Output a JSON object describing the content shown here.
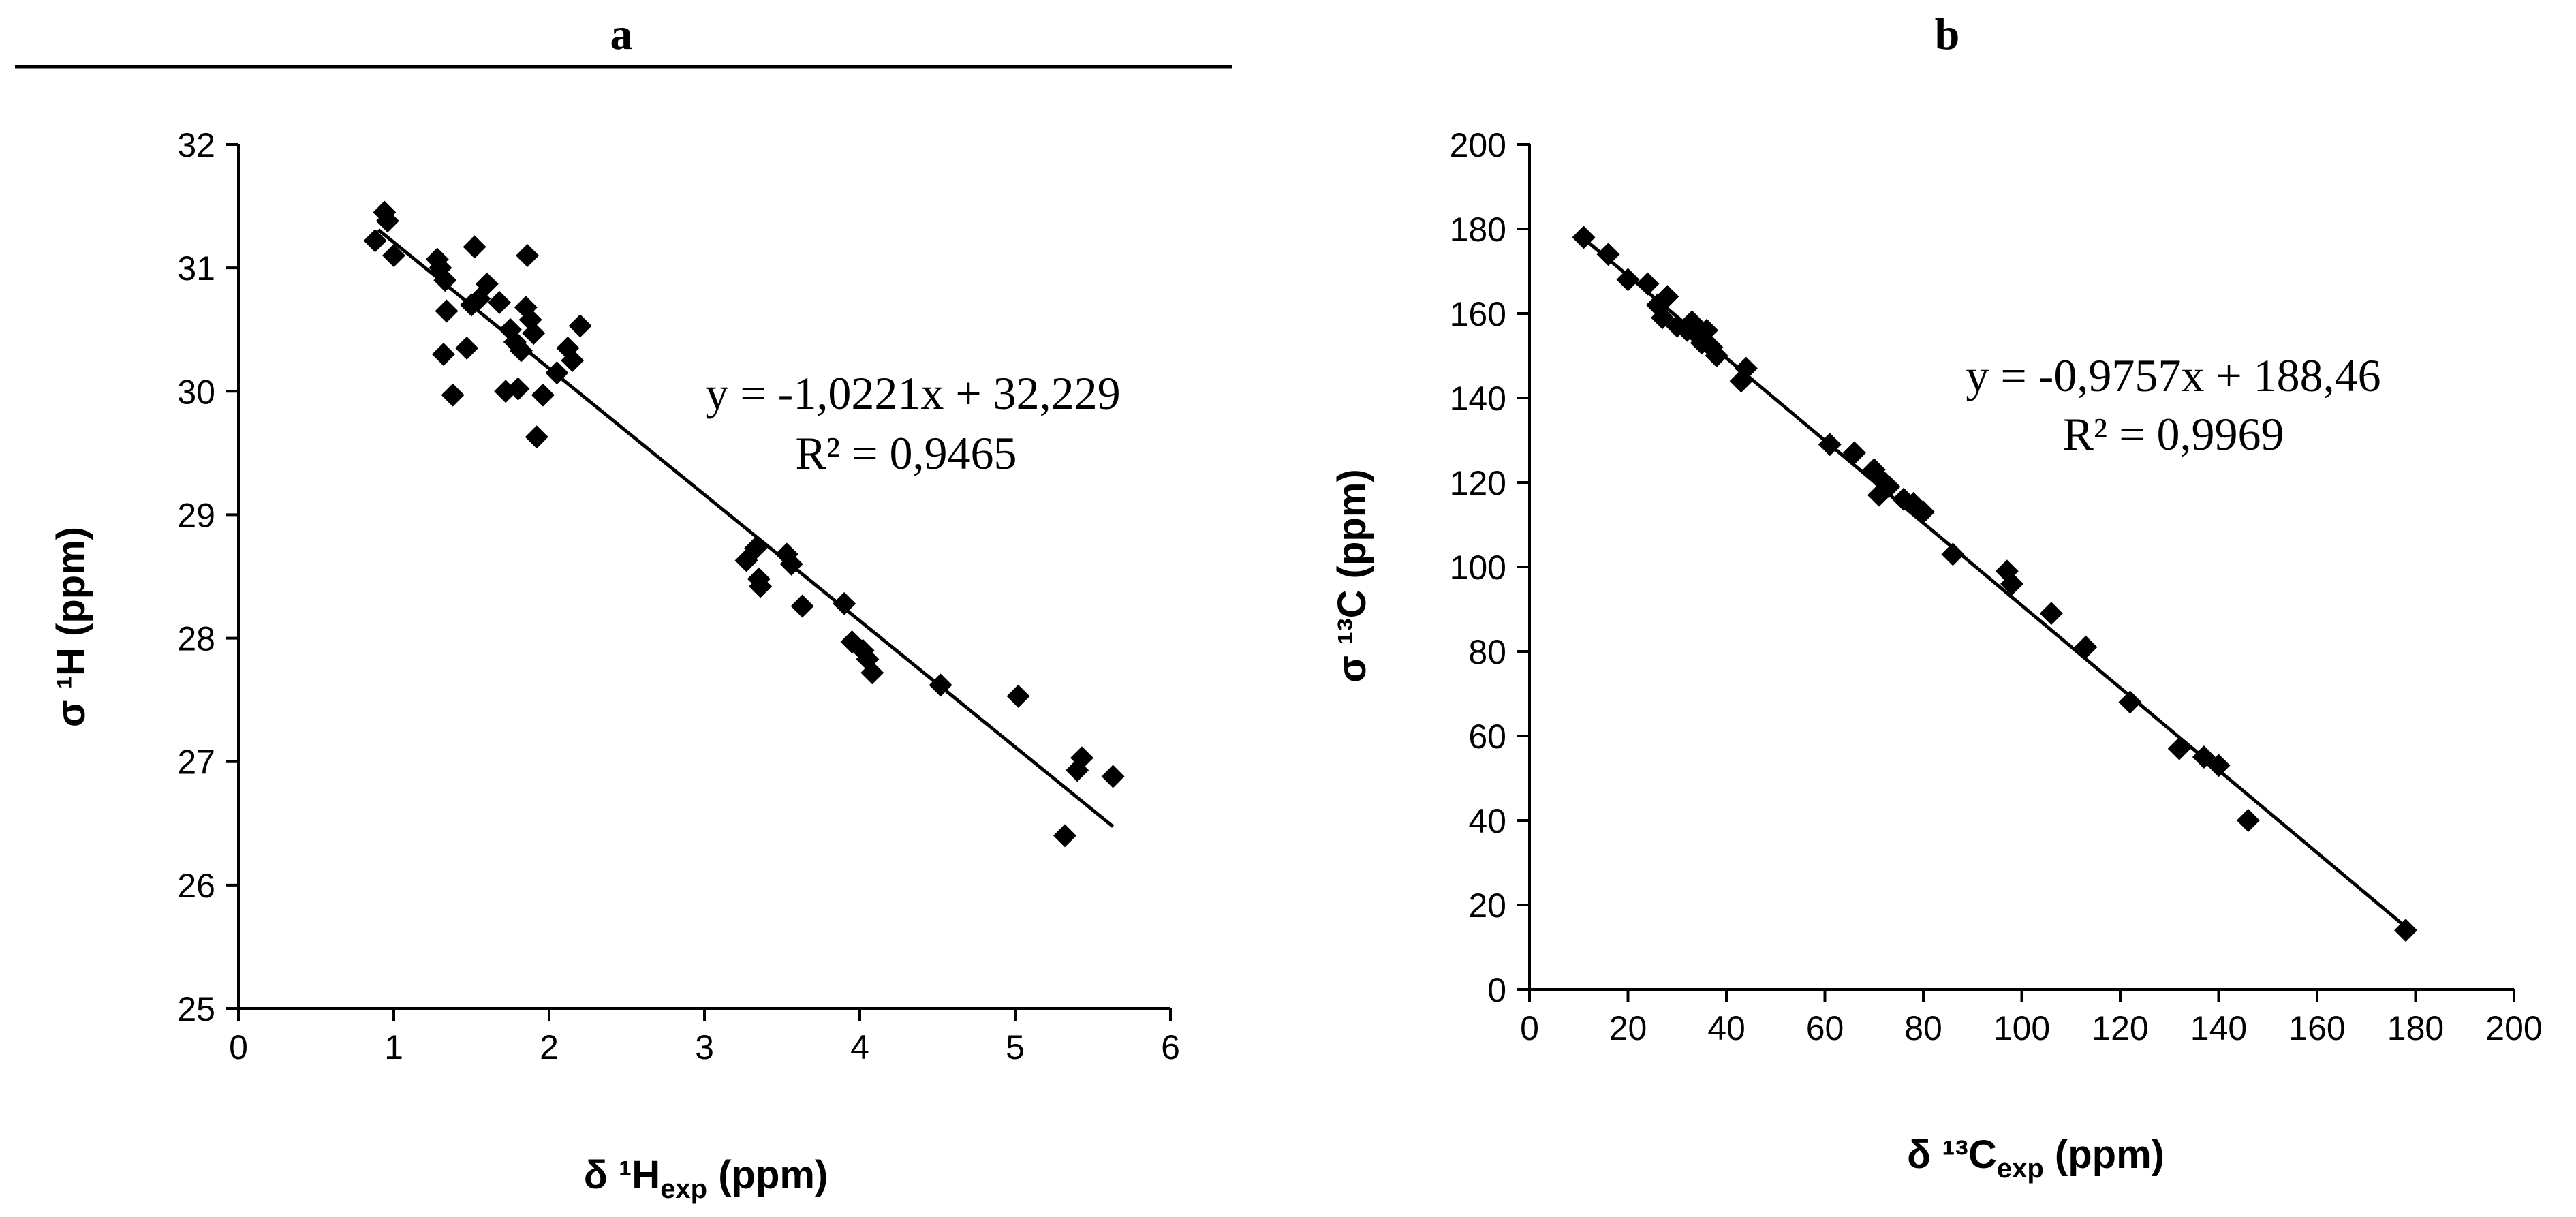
{
  "chart_data": [
    {
      "panel": "a",
      "type": "scatter",
      "xlabel": "δ ¹H",
      "xlabel_sub": "exp",
      "xlabel_unit": " (ppm)",
      "ylabel": "σ ¹H (ppm)",
      "xlim": [
        0,
        6
      ],
      "ylim": [
        25,
        32
      ],
      "xticks": [
        0,
        1,
        2,
        3,
        4,
        5,
        6
      ],
      "yticks": [
        25,
        26,
        27,
        28,
        29,
        30,
        31,
        32
      ],
      "grid": false,
      "equation": "y = -1,0221x + 32,229",
      "r2": "R² = 0,9465",
      "trendline": {
        "slope": -1.0221,
        "intercept": 32.229,
        "x_range": [
          0.9,
          5.63
        ]
      },
      "points": [
        [
          0.88,
          31.22
        ],
        [
          0.94,
          31.45
        ],
        [
          0.96,
          31.38
        ],
        [
          1.0,
          31.1
        ],
        [
          1.28,
          31.07
        ],
        [
          1.3,
          31.0
        ],
        [
          1.33,
          30.9
        ],
        [
          1.34,
          30.65
        ],
        [
          1.32,
          30.3
        ],
        [
          1.38,
          29.97
        ],
        [
          1.47,
          30.35
        ],
        [
          1.5,
          30.7
        ],
        [
          1.52,
          31.17
        ],
        [
          1.55,
          30.75
        ],
        [
          1.6,
          30.87
        ],
        [
          1.68,
          30.72
        ],
        [
          1.72,
          30.0
        ],
        [
          1.75,
          30.5
        ],
        [
          1.78,
          30.4
        ],
        [
          1.8,
          30.02
        ],
        [
          1.82,
          30.33
        ],
        [
          1.85,
          30.68
        ],
        [
          1.86,
          31.1
        ],
        [
          1.88,
          30.58
        ],
        [
          1.9,
          30.47
        ],
        [
          1.92,
          29.63
        ],
        [
          1.96,
          29.97
        ],
        [
          2.05,
          30.15
        ],
        [
          2.12,
          30.35
        ],
        [
          2.15,
          30.25
        ],
        [
          2.2,
          30.53
        ],
        [
          3.27,
          28.63
        ],
        [
          3.33,
          28.73
        ],
        [
          3.35,
          28.48
        ],
        [
          3.36,
          28.42
        ],
        [
          3.53,
          28.68
        ],
        [
          3.56,
          28.6
        ],
        [
          3.63,
          28.26
        ],
        [
          3.9,
          28.28
        ],
        [
          3.95,
          27.97
        ],
        [
          4.02,
          27.9
        ],
        [
          4.05,
          27.83
        ],
        [
          4.08,
          27.72
        ],
        [
          4.52,
          27.62
        ],
        [
          5.02,
          27.53
        ],
        [
          5.32,
          26.4
        ],
        [
          5.4,
          26.93
        ],
        [
          5.43,
          27.03
        ],
        [
          5.63,
          26.88
        ]
      ]
    },
    {
      "panel": "b",
      "type": "scatter",
      "xlabel": "δ ¹³C",
      "xlabel_sub": "exp",
      "xlabel_unit": " (ppm)",
      "ylabel": "σ ¹³C (ppm)",
      "xlim": [
        0,
        200
      ],
      "ylim": [
        0,
        200
      ],
      "xticks": [
        0,
        20,
        40,
        60,
        80,
        100,
        120,
        140,
        160,
        180,
        200
      ],
      "yticks": [
        0,
        20,
        40,
        60,
        80,
        100,
        120,
        140,
        160,
        180,
        200
      ],
      "grid": false,
      "equation": "y = -0,9757x + 188,46",
      "r2": "R² = 0,9969",
      "trendline": {
        "slope": -0.9757,
        "intercept": 188.46,
        "x_range": [
          11,
          178
        ]
      },
      "points": [
        [
          11,
          178
        ],
        [
          16,
          174
        ],
        [
          20,
          168
        ],
        [
          24,
          167
        ],
        [
          26,
          162
        ],
        [
          27,
          159
        ],
        [
          28,
          164
        ],
        [
          30,
          157
        ],
        [
          32,
          156
        ],
        [
          33,
          158
        ],
        [
          34,
          155
        ],
        [
          35,
          153
        ],
        [
          36,
          156
        ],
        [
          37,
          152
        ],
        [
          38,
          150
        ],
        [
          43,
          144
        ],
        [
          44,
          147
        ],
        [
          61,
          129
        ],
        [
          66,
          127
        ],
        [
          70,
          123
        ],
        [
          71,
          117
        ],
        [
          72,
          120
        ],
        [
          73,
          119
        ],
        [
          76,
          116
        ],
        [
          78,
          115
        ],
        [
          80,
          113
        ],
        [
          86,
          103
        ],
        [
          97,
          99
        ],
        [
          98,
          96
        ],
        [
          106,
          89
        ],
        [
          113,
          81
        ],
        [
          122,
          68
        ],
        [
          132,
          57
        ],
        [
          137,
          55
        ],
        [
          140,
          53
        ],
        [
          146,
          40
        ],
        [
          178,
          14
        ]
      ]
    }
  ]
}
